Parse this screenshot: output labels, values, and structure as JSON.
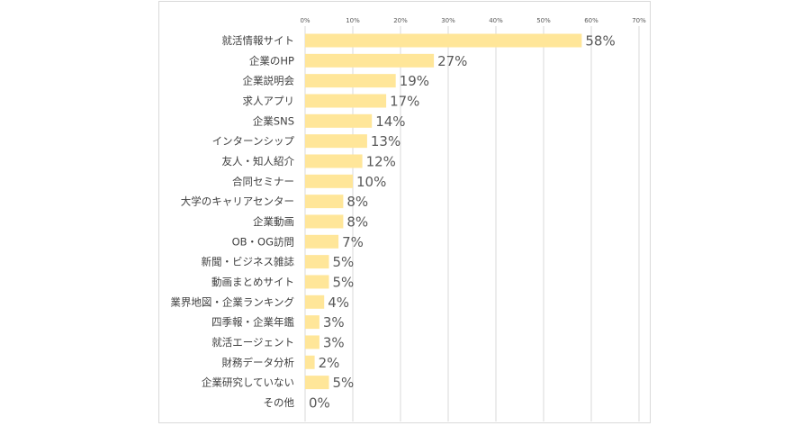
{
  "chart_data": {
    "type": "bar",
    "orientation": "horizontal",
    "title": "",
    "xlabel": "",
    "ylabel": "",
    "xlim": [
      0,
      70
    ],
    "x_ticks": [
      "0%",
      "10%",
      "20%",
      "30%",
      "40%",
      "50%",
      "60%",
      "70%"
    ],
    "grid": true,
    "bar_color": "#ffe699",
    "categories": [
      "就活情報サイト",
      "企業のHP",
      "企業説明会",
      "求人アプリ",
      "企業SNS",
      "インターンシップ",
      "友人・知人紹介",
      "合同セミナー",
      "大学のキャリアセンター",
      "企業動画",
      "OB・OG訪問",
      "新聞・ビジネス雑誌",
      "動画まとめサイト",
      "業界地図・企業ランキング",
      "四季報・企業年鑑",
      "就活エージェント",
      "財務データ分析",
      "企業研究していない",
      "その他"
    ],
    "values": [
      58,
      27,
      19,
      17,
      14,
      13,
      12,
      10,
      8,
      8,
      7,
      5,
      5,
      4,
      3,
      3,
      2,
      5,
      0
    ],
    "value_labels": [
      "58%",
      "27%",
      "19%",
      "17%",
      "14%",
      "13%",
      "12%",
      "10%",
      "8%",
      "8%",
      "7%",
      "5%",
      "5%",
      "4%",
      "3%",
      "3%",
      "2%",
      "5%",
      "0%"
    ]
  }
}
